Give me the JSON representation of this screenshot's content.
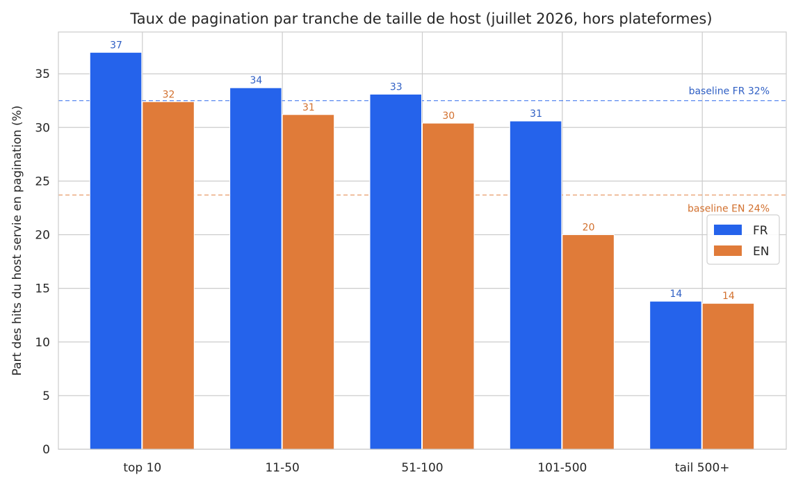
{
  "chart_data": {
    "type": "bar",
    "title": "Taux de pagination par tranche de taille de host (juillet 2026, hors plateformes)",
    "xlabel": "",
    "ylabel": "Part des hits du host servie en pagination (%)",
    "categories": [
      "top 10",
      "11-50",
      "51-100",
      "101-500",
      "tail 500+"
    ],
    "series": [
      {
        "name": "FR",
        "color": "#2563eb",
        "label_color": "#2f5fc4",
        "values": [
          37.0,
          33.7,
          33.1,
          30.6,
          13.8
        ],
        "labels": [
          "37",
          "34",
          "33",
          "31",
          "14"
        ]
      },
      {
        "name": "EN",
        "color": "#e07b39",
        "label_color": "#d2702e",
        "values": [
          32.4,
          31.2,
          30.4,
          20.0,
          13.6
        ],
        "labels": [
          "32",
          "31",
          "30",
          "20",
          "14"
        ]
      }
    ],
    "baselines": [
      {
        "label": "baseline FR 32%",
        "value": 32.5,
        "color": "#2563eb",
        "text_color": "#2f5fc4"
      },
      {
        "label": "baseline EN 24%",
        "value": 23.7,
        "color": "#e07b39",
        "text_color": "#d2702e"
      }
    ],
    "ylim": [
      0,
      38.9
    ],
    "yticks": [
      0,
      5,
      10,
      15,
      20,
      25,
      30,
      35
    ],
    "grid": true,
    "legend_position": "center-right"
  }
}
